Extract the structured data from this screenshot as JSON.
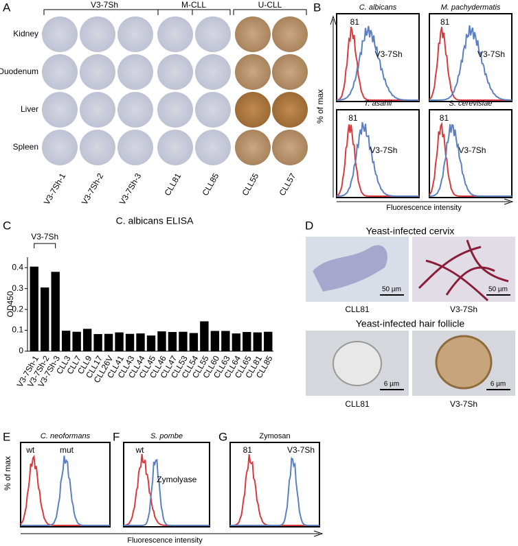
{
  "panel_labels": [
    "A",
    "B",
    "C",
    "D",
    "E",
    "F",
    "G"
  ],
  "panel_a": {
    "groups": [
      "V3-7Sh",
      "M-CLL",
      "U-CLL"
    ],
    "rows": [
      "Kidney",
      "Duodenum",
      "Liver",
      "Spleen"
    ],
    "columns": [
      "V3-7Sh-1",
      "V3-7Sh-2",
      "V3-7Sh-3",
      "CLL81",
      "CLL85",
      "CLL55",
      "CLL57"
    ]
  },
  "panel_b": {
    "plots": [
      {
        "title": "C. albicans",
        "label_red": "81",
        "label_blue": "V3-7Sh"
      },
      {
        "title": "M. pachydermatis",
        "label_red": "81",
        "label_blue": "V3-7Sh"
      },
      {
        "title": "T. asahii",
        "label_red": "81",
        "label_blue": "V3-7Sh"
      },
      {
        "title": "S. cerevisiae",
        "label_red": "81",
        "label_blue": "V3-7Sh"
      }
    ],
    "y_label": "% of max",
    "x_label": "Fluorescence intensity"
  },
  "chart_data": {
    "type": "bar",
    "title": "C. albicans ELISA",
    "y_label": "OD450",
    "annotations": [
      "V3-7Sh"
    ],
    "categories": [
      "V3-7Sh-1",
      "V3-7Sh-2",
      "V3-7Sh-3",
      "CLL3",
      "CLL7",
      "CLL9",
      "CLL17",
      "CLL26V",
      "CLL41",
      "CLL43",
      "CLL44",
      "CLL45",
      "CLL46",
      "CLL47",
      "CLL53",
      "CLL54",
      "CLL55",
      "CLL60",
      "CLL63",
      "CLL64",
      "CLL65",
      "CLL81",
      "CLL85"
    ],
    "values": [
      0.405,
      0.305,
      0.38,
      0.098,
      0.093,
      0.107,
      0.082,
      0.083,
      0.09,
      0.083,
      0.085,
      0.075,
      0.095,
      0.092,
      0.093,
      0.087,
      0.143,
      0.097,
      0.097,
      0.085,
      0.092,
      0.09,
      0.093
    ],
    "color": "#000000",
    "ylim": [
      0,
      0.45
    ],
    "yticks": [
      0,
      0.1,
      0.2,
      0.3,
      0.4
    ]
  },
  "panel_d": {
    "title_top": "Yeast-infected cervix",
    "title_bottom": "Yeast-infected hair follicle",
    "labels_top": [
      "CLL81",
      "V3-7Sh"
    ],
    "labels_bottom": [
      "CLL81",
      "V3-7Sh"
    ],
    "scale_top": "50 µm",
    "scale_bottom": "6 µm"
  },
  "panel_efg": {
    "plots": [
      {
        "title": "C. neoformans",
        "label_red": "wt",
        "label_blue": "mut"
      },
      {
        "title": "S. pombe",
        "label_red": "wt",
        "label_blue": "Zymolyase"
      },
      {
        "title": "Zymosan",
        "label_red": "81",
        "label_blue": "V3-7Sh"
      }
    ],
    "y_label": "% of max",
    "x_label": "Fluorescence intensity"
  }
}
